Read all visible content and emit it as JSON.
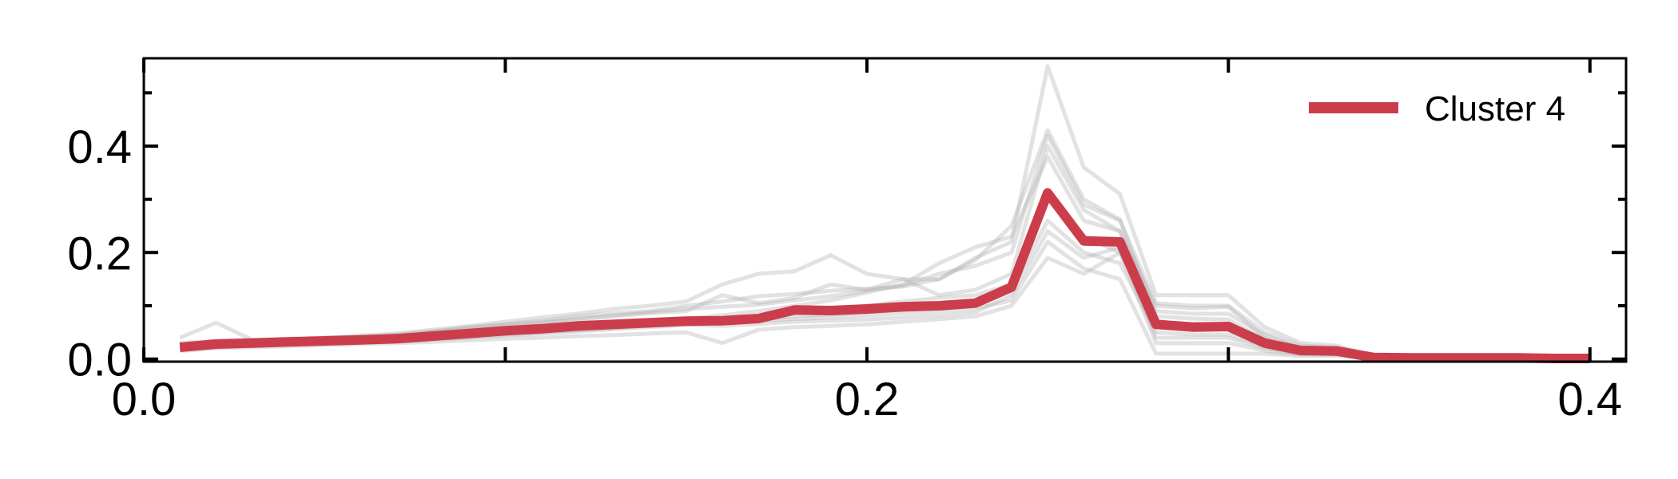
{
  "chart_data": {
    "type": "line",
    "title": "",
    "xlabel": "",
    "ylabel": "",
    "xlim": [
      0.0,
      0.41
    ],
    "ylim": [
      -0.005,
      0.565
    ],
    "x_ticks": [
      0.0,
      0.2,
      0.4
    ],
    "x_tick_labels": [
      "0.0",
      "0.2",
      "0.4"
    ],
    "x_minor_ticks": [
      0.1,
      0.3
    ],
    "y_ticks": [
      0.0,
      0.2,
      0.4
    ],
    "y_tick_labels": [
      "0.0",
      "0.2",
      "0.4"
    ],
    "y_minor_ticks": [
      0.1,
      0.3,
      0.5
    ],
    "grid": false,
    "legend": {
      "position": "top-right"
    },
    "x": [
      0.01,
      0.02,
      0.03,
      0.04,
      0.05,
      0.06,
      0.07,
      0.08,
      0.09,
      0.1,
      0.11,
      0.12,
      0.13,
      0.14,
      0.15,
      0.16,
      0.17,
      0.18,
      0.19,
      0.2,
      0.21,
      0.22,
      0.23,
      0.24,
      0.25,
      0.26,
      0.27,
      0.28,
      0.29,
      0.3,
      0.31,
      0.32,
      0.33,
      0.34,
      0.35,
      0.36,
      0.37,
      0.38,
      0.39,
      0.4
    ],
    "series": [
      {
        "name": "Cluster 4",
        "color": "#cc3d4c",
        "values": [
          0.022,
          0.028,
          0.03,
          0.032,
          0.034,
          0.036,
          0.038,
          0.043,
          0.048,
          0.053,
          0.057,
          0.062,
          0.065,
          0.068,
          0.071,
          0.072,
          0.076,
          0.092,
          0.091,
          0.094,
          0.098,
          0.1,
          0.105,
          0.135,
          0.312,
          0.222,
          0.22,
          0.065,
          0.06,
          0.061,
          0.03,
          0.016,
          0.015,
          0.003,
          0.002,
          0.002,
          0.002,
          0.002,
          0.001,
          0.001
        ]
      }
    ],
    "background_series": {
      "color": "#b4b4b4",
      "values": [
        [
          0.04,
          0.068,
          0.036,
          0.033,
          0.036,
          0.038,
          0.045,
          0.052,
          0.06,
          0.066,
          0.072,
          0.08,
          0.086,
          0.09,
          0.1,
          0.108,
          0.118,
          0.122,
          0.128,
          0.132,
          0.136,
          0.15,
          0.186,
          0.25,
          0.43,
          0.3,
          0.262,
          0.08,
          0.076,
          0.074,
          0.036,
          0.018,
          0.016,
          0.004,
          0.002,
          0.002,
          0.002,
          0.002,
          0.001,
          0.001
        ],
        [
          0.02,
          0.025,
          0.027,
          0.03,
          0.032,
          0.034,
          0.036,
          0.04,
          0.044,
          0.048,
          0.052,
          0.056,
          0.06,
          0.064,
          0.068,
          0.07,
          0.074,
          0.08,
          0.084,
          0.088,
          0.092,
          0.096,
          0.104,
          0.13,
          0.26,
          0.2,
          0.18,
          0.05,
          0.046,
          0.046,
          0.024,
          0.012,
          0.012,
          0.002,
          0.002,
          0.002,
          0.002,
          0.001,
          0.001,
          0.001
        ],
        [
          0.03,
          0.034,
          0.036,
          0.038,
          0.04,
          0.044,
          0.048,
          0.055,
          0.062,
          0.07,
          0.078,
          0.085,
          0.094,
          0.1,
          0.108,
          0.14,
          0.16,
          0.165,
          0.195,
          0.16,
          0.15,
          0.15,
          0.19,
          0.22,
          0.55,
          0.36,
          0.31,
          0.12,
          0.12,
          0.12,
          0.06,
          0.03,
          0.025,
          0.006,
          0.003,
          0.002,
          0.002,
          0.002,
          0.001,
          0.001
        ],
        [
          0.015,
          0.02,
          0.022,
          0.024,
          0.026,
          0.028,
          0.03,
          0.032,
          0.035,
          0.038,
          0.04,
          0.043,
          0.045,
          0.048,
          0.05,
          0.03,
          0.055,
          0.06,
          0.062,
          0.065,
          0.07,
          0.075,
          0.08,
          0.1,
          0.19,
          0.16,
          0.2,
          0.03,
          0.03,
          0.03,
          0.016,
          0.008,
          0.008,
          0.002,
          0.001,
          0.001,
          0.001,
          0.001,
          0.001,
          0.001
        ],
        [
          0.025,
          0.03,
          0.032,
          0.035,
          0.038,
          0.041,
          0.044,
          0.05,
          0.056,
          0.062,
          0.068,
          0.074,
          0.08,
          0.086,
          0.09,
          0.12,
          0.105,
          0.115,
          0.14,
          0.13,
          0.15,
          0.12,
          0.13,
          0.16,
          0.4,
          0.28,
          0.24,
          0.1,
          0.095,
          0.098,
          0.04,
          0.02,
          0.018,
          0.004,
          0.002,
          0.002,
          0.002,
          0.002,
          0.001,
          0.001
        ],
        [
          0.02,
          0.024,
          0.026,
          0.028,
          0.03,
          0.032,
          0.034,
          0.038,
          0.042,
          0.046,
          0.05,
          0.054,
          0.058,
          0.062,
          0.066,
          0.068,
          0.072,
          0.075,
          0.078,
          0.082,
          0.086,
          0.09,
          0.095,
          0.11,
          0.22,
          0.17,
          0.15,
          0.01,
          0.01,
          0.01,
          0.01,
          0.006,
          0.006,
          0.002,
          0.001,
          0.001,
          0.001,
          0.001,
          0.001,
          0.001
        ],
        [
          0.022,
          0.026,
          0.029,
          0.031,
          0.034,
          0.037,
          0.04,
          0.045,
          0.05,
          0.055,
          0.06,
          0.064,
          0.068,
          0.072,
          0.076,
          0.082,
          0.09,
          0.1,
          0.11,
          0.125,
          0.14,
          0.18,
          0.21,
          0.23,
          0.38,
          0.26,
          0.24,
          0.09,
          0.085,
          0.085,
          0.045,
          0.022,
          0.02,
          0.005,
          0.002,
          0.002,
          0.002,
          0.002,
          0.001,
          0.001
        ],
        [
          0.018,
          0.022,
          0.025,
          0.027,
          0.029,
          0.031,
          0.033,
          0.036,
          0.04,
          0.044,
          0.048,
          0.052,
          0.056,
          0.06,
          0.064,
          0.062,
          0.066,
          0.07,
          0.072,
          0.074,
          0.078,
          0.082,
          0.088,
          0.12,
          0.24,
          0.19,
          0.21,
          0.04,
          0.04,
          0.04,
          0.02,
          0.01,
          0.01,
          0.002,
          0.001,
          0.001,
          0.001,
          0.001,
          0.001,
          0.001
        ],
        [
          0.026,
          0.031,
          0.033,
          0.036,
          0.039,
          0.042,
          0.046,
          0.052,
          0.058,
          0.064,
          0.07,
          0.076,
          0.082,
          0.088,
          0.094,
          0.098,
          0.102,
          0.11,
          0.118,
          0.128,
          0.138,
          0.16,
          0.175,
          0.2,
          0.42,
          0.29,
          0.26,
          0.105,
          0.1,
          0.1,
          0.05,
          0.025,
          0.022,
          0.005,
          0.003,
          0.002,
          0.002,
          0.002,
          0.001,
          0.001
        ],
        [
          0.021,
          0.025,
          0.027,
          0.029,
          0.031,
          0.033,
          0.035,
          0.039,
          0.043,
          0.047,
          0.051,
          0.055,
          0.059,
          0.063,
          0.067,
          0.071,
          0.08,
          0.088,
          0.094,
          0.1,
          0.108,
          0.115,
          0.12,
          0.14,
          0.3,
          0.23,
          0.2,
          0.07,
          0.066,
          0.066,
          0.034,
          0.017,
          0.016,
          0.003,
          0.002,
          0.002,
          0.002,
          0.002,
          0.001,
          0.001
        ]
      ]
    }
  }
}
